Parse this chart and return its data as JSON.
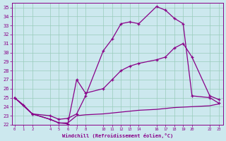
{
  "xlabel": "Windchill (Refroidissement éolien,°C)",
  "bg_color": "#cce8ee",
  "grid_color": "#99ccbb",
  "line_color": "#880088",
  "x_ticks": [
    0,
    1,
    2,
    4,
    5,
    6,
    7,
    8,
    10,
    11,
    12,
    13,
    14,
    16,
    17,
    18,
    19,
    20,
    22,
    23
  ],
  "ylim": [
    22,
    35.5
  ],
  "xlim": [
    -0.3,
    23.5
  ],
  "series1_x": [
    0,
    1,
    2,
    4,
    5,
    6,
    7,
    8,
    10,
    11,
    12,
    13,
    14,
    16,
    17,
    18,
    19,
    20,
    22,
    23
  ],
  "series1_y": [
    25.0,
    24.2,
    23.2,
    23.0,
    22.6,
    22.7,
    23.2,
    25.2,
    30.2,
    31.5,
    33.2,
    33.4,
    33.2,
    35.1,
    34.7,
    33.8,
    33.2,
    25.2,
    25.0,
    24.4
  ],
  "series2_x": [
    0,
    2,
    4,
    5,
    6,
    7,
    8,
    10,
    11,
    12,
    13,
    14,
    16,
    17,
    18,
    19,
    20,
    22,
    23
  ],
  "series2_y": [
    25.0,
    23.2,
    22.6,
    22.2,
    22.1,
    27.0,
    25.5,
    26.0,
    27.0,
    28.0,
    28.5,
    28.8,
    29.2,
    29.5,
    30.5,
    31.0,
    29.5,
    25.2,
    24.8
  ],
  "series3_x": [
    0,
    2,
    4,
    5,
    6,
    7,
    8,
    10,
    11,
    12,
    13,
    14,
    16,
    17,
    18,
    19,
    20,
    22,
    23
  ],
  "series3_y": [
    25.0,
    23.2,
    22.6,
    22.2,
    22.2,
    23.0,
    23.1,
    23.2,
    23.3,
    23.4,
    23.5,
    23.6,
    23.7,
    23.8,
    23.9,
    23.95,
    24.0,
    24.1,
    24.3
  ]
}
